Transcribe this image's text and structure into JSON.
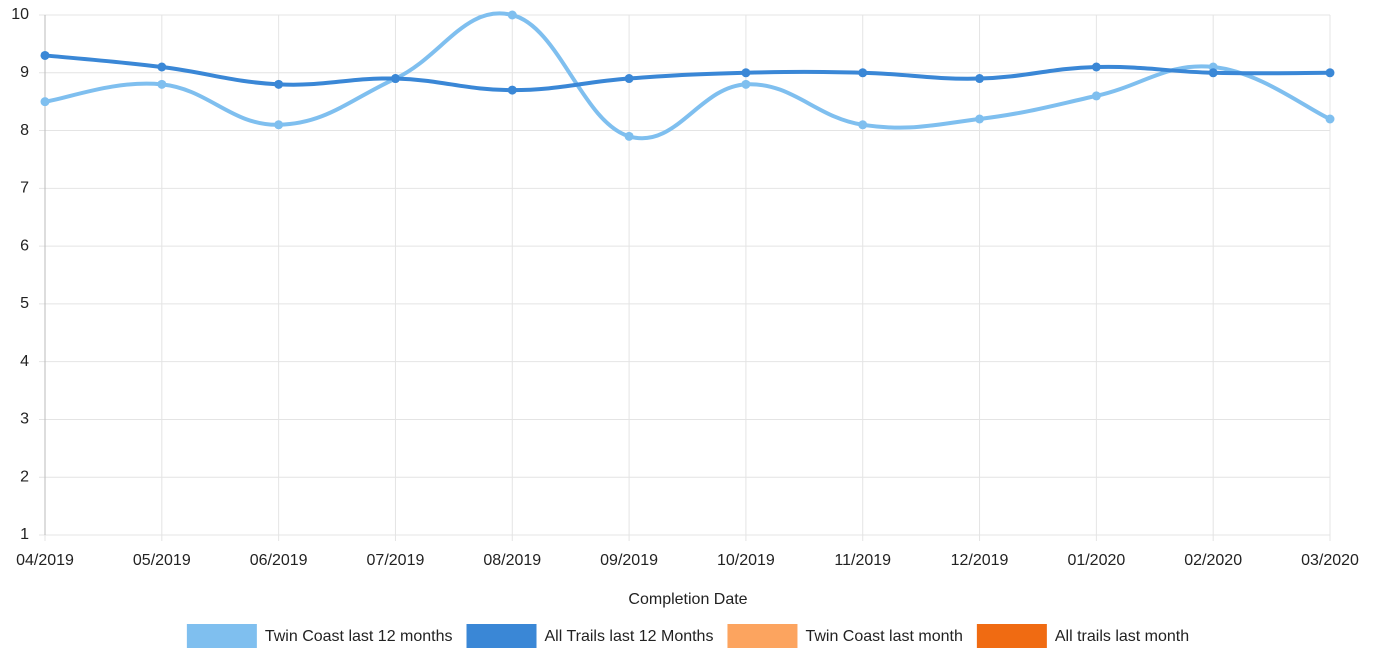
{
  "chart_data": {
    "type": "line",
    "x_label": "Completion Date",
    "categories": [
      "04/2019",
      "05/2019",
      "06/2019",
      "07/2019",
      "08/2019",
      "09/2019",
      "10/2019",
      "11/2019",
      "12/2019",
      "01/2020",
      "02/2020",
      "03/2020"
    ],
    "series": [
      {
        "name": "Twin Coast last 12 months",
        "color": "#7fbfef",
        "values": [
          8.5,
          8.8,
          8.1,
          8.9,
          10,
          7.9,
          8.8,
          8.1,
          8.2,
          8.6,
          9.1,
          8.2
        ]
      },
      {
        "name": "All Trails last 12 Months",
        "color": "#3a87d6",
        "values": [
          9.3,
          9.1,
          8.8,
          8.9,
          8.7,
          8.9,
          9.0,
          9.0,
          8.9,
          9.1,
          9.0,
          9.0
        ]
      },
      {
        "name": "Twin Coast last month",
        "color": "#fca45f",
        "values": [
          null,
          null,
          null,
          null,
          null,
          null,
          null,
          null,
          null,
          null,
          null,
          null
        ]
      },
      {
        "name": "All trails last month",
        "color": "#f06b12",
        "values": [
          null,
          null,
          null,
          null,
          null,
          null,
          null,
          null,
          null,
          null,
          null,
          null
        ]
      }
    ],
    "ylim": [
      1,
      10
    ],
    "yticks": [
      1,
      2,
      3,
      4,
      5,
      6,
      7,
      8,
      9,
      10
    ],
    "grid": true,
    "legend": "bottom"
  }
}
